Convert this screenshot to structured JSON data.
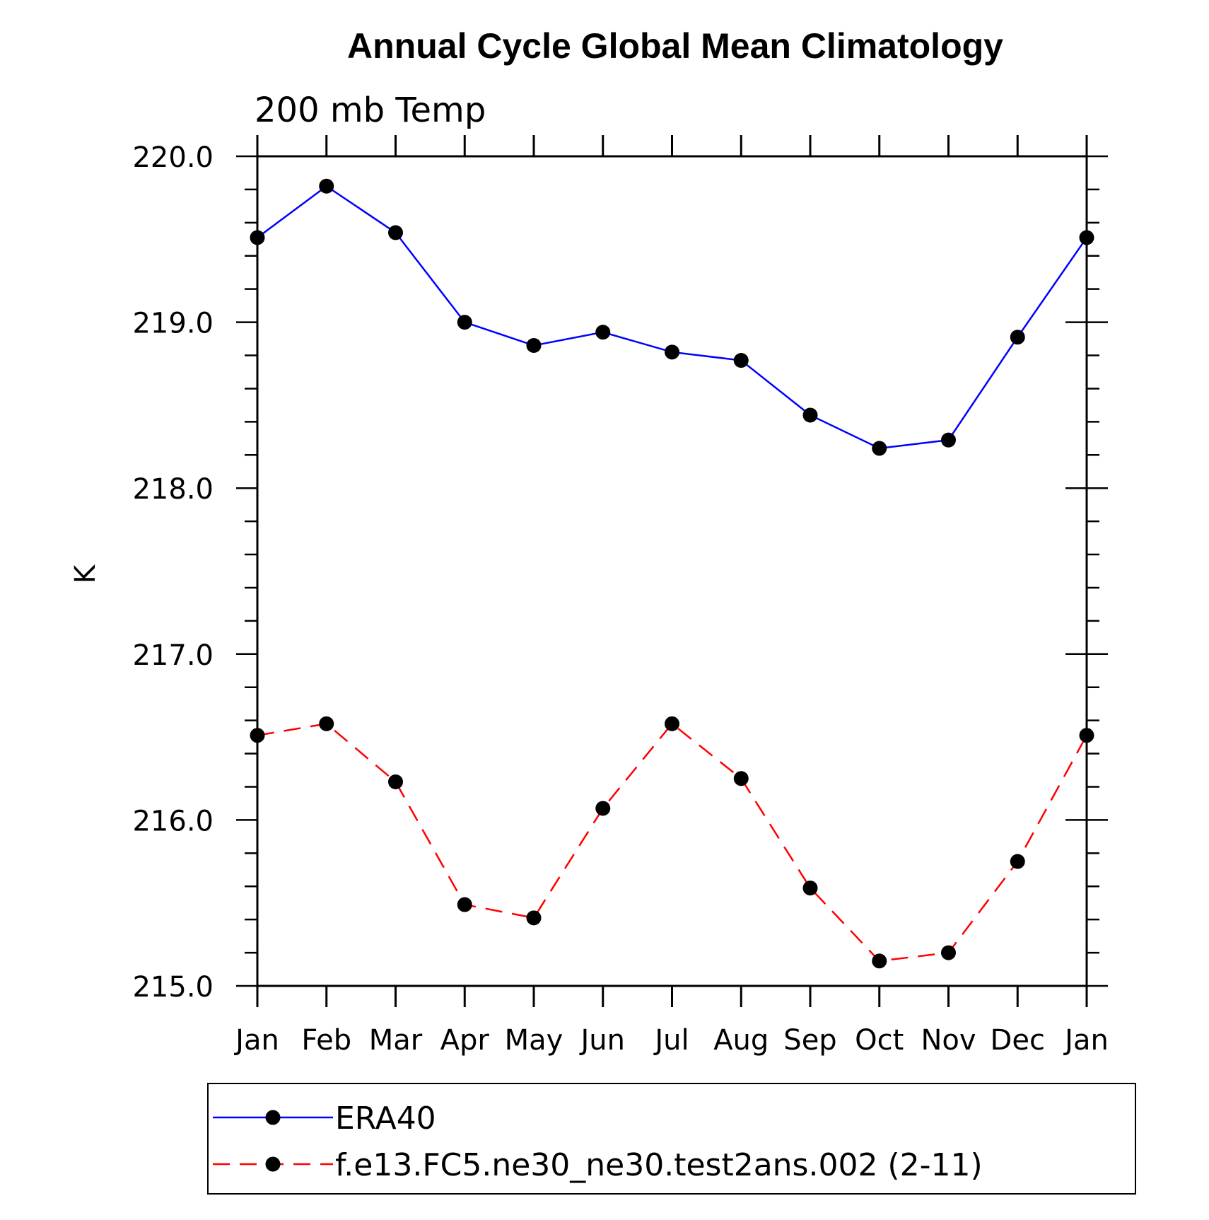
{
  "chart_data": {
    "type": "line",
    "title": "Annual Cycle Global Mean Climatology",
    "subtitle": "200 mb Temp",
    "ylabel": "K",
    "xlabel": "",
    "categories": [
      "Jan",
      "Feb",
      "Mar",
      "Apr",
      "May",
      "Jun",
      "Jul",
      "Aug",
      "Sep",
      "Oct",
      "Nov",
      "Dec",
      "Jan"
    ],
    "ylim": [
      215.0,
      220.0
    ],
    "yticks": [
      "215.0",
      "216.0",
      "217.0",
      "218.0",
      "219.0",
      "220.0"
    ],
    "series": [
      {
        "name": "ERA40",
        "color": "#0000ff",
        "dash": "solid",
        "marker": "filled-circle",
        "values": [
          219.51,
          219.82,
          219.54,
          219.0,
          218.86,
          218.94,
          218.82,
          218.77,
          218.44,
          218.24,
          218.29,
          218.91,
          219.51
        ]
      },
      {
        "name": "f.e13.FC5.ne30_ne30.test2ans.002 (2-11)",
        "color": "#ff0000",
        "dash": "dashed",
        "marker": "filled-circle",
        "values": [
          216.51,
          216.58,
          216.23,
          215.49,
          215.41,
          216.07,
          216.58,
          216.25,
          215.59,
          215.15,
          215.2,
          215.75,
          216.51
        ]
      }
    ],
    "legend_position": "bottom"
  }
}
